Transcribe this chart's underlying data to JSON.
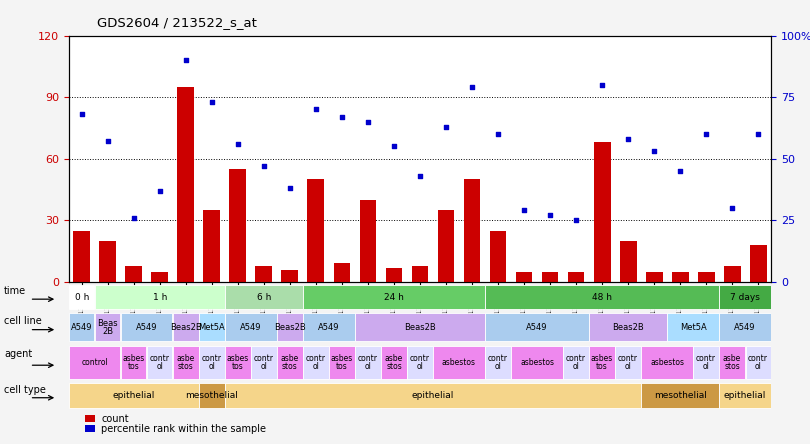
{
  "title": "GDS2604 / 213522_s_at",
  "samples": [
    "GSM139646",
    "GSM139660",
    "GSM139640",
    "GSM139647",
    "GSM139654",
    "GSM139661",
    "GSM139760",
    "GSM139669",
    "GSM139641",
    "GSM139648",
    "GSM139655",
    "GSM139663",
    "GSM139643",
    "GSM139653",
    "GSM139656",
    "GSM139657",
    "GSM139664",
    "GSM139644",
    "GSM139645",
    "GSM139652",
    "GSM139659",
    "GSM139666",
    "GSM139667",
    "GSM139668",
    "GSM139761",
    "GSM139642",
    "GSM139649"
  ],
  "counts": [
    25,
    20,
    8,
    5,
    95,
    35,
    55,
    8,
    6,
    50,
    9,
    40,
    7,
    8,
    35,
    50,
    25,
    5,
    5,
    5,
    68,
    20,
    5,
    5,
    5,
    8,
    18
  ],
  "percentiles": [
    68,
    57,
    26,
    37,
    90,
    73,
    56,
    47,
    38,
    70,
    67,
    65,
    55,
    43,
    63,
    79,
    60,
    29,
    27,
    25,
    80,
    58,
    53,
    45,
    60,
    30,
    60
  ],
  "ylim_left": [
    0,
    120
  ],
  "ylim_right": [
    0,
    100
  ],
  "yticks_left": [
    0,
    30,
    60,
    90,
    120
  ],
  "yticks_right": [
    0,
    25,
    50,
    75,
    100
  ],
  "bar_color": "#cc0000",
  "dot_color": "#0000cc",
  "bg_color": "#ffffff",
  "fig_bg": "#f4f4f4",
  "left_axis_color": "#cc0000",
  "right_axis_color": "#0000cc",
  "time_row": {
    "segments": [
      {
        "text": "0 h",
        "start": 0,
        "end": 1,
        "color": "#ffffff"
      },
      {
        "text": "1 h",
        "start": 1,
        "end": 6,
        "color": "#ccffcc"
      },
      {
        "text": "6 h",
        "start": 6,
        "end": 9,
        "color": "#aaddaa"
      },
      {
        "text": "24 h",
        "start": 9,
        "end": 16,
        "color": "#66cc66"
      },
      {
        "text": "48 h",
        "start": 16,
        "end": 25,
        "color": "#55bb55"
      },
      {
        "text": "7 days",
        "start": 25,
        "end": 27,
        "color": "#44aa44"
      }
    ]
  },
  "cellline_row": {
    "segments": [
      {
        "text": "A549",
        "start": 0,
        "end": 1,
        "color": "#aaccee"
      },
      {
        "text": "Beas\n2B",
        "start": 1,
        "end": 2,
        "color": "#ccaaee"
      },
      {
        "text": "A549",
        "start": 2,
        "end": 4,
        "color": "#aaccee"
      },
      {
        "text": "Beas2B",
        "start": 4,
        "end": 5,
        "color": "#ccaaee"
      },
      {
        "text": "Met5A",
        "start": 5,
        "end": 6,
        "color": "#aaddff"
      },
      {
        "text": "A549",
        "start": 6,
        "end": 8,
        "color": "#aaccee"
      },
      {
        "text": "Beas2B",
        "start": 8,
        "end": 9,
        "color": "#ccaaee"
      },
      {
        "text": "A549",
        "start": 9,
        "end": 11,
        "color": "#aaccee"
      },
      {
        "text": "Beas2B",
        "start": 11,
        "end": 16,
        "color": "#ccaaee"
      },
      {
        "text": "A549",
        "start": 16,
        "end": 20,
        "color": "#aaccee"
      },
      {
        "text": "Beas2B",
        "start": 20,
        "end": 23,
        "color": "#ccaaee"
      },
      {
        "text": "Met5A",
        "start": 23,
        "end": 25,
        "color": "#aaddff"
      },
      {
        "text": "A549",
        "start": 25,
        "end": 27,
        "color": "#aaccee"
      }
    ]
  },
  "agent_row": {
    "segments": [
      {
        "text": "control",
        "start": 0,
        "end": 2,
        "color": "#ee88ee"
      },
      {
        "text": "asbes\ntos",
        "start": 2,
        "end": 3,
        "color": "#ee88ee"
      },
      {
        "text": "contr\nol",
        "start": 3,
        "end": 4,
        "color": "#ddddff"
      },
      {
        "text": "asbe\nstos",
        "start": 4,
        "end": 5,
        "color": "#ee88ee"
      },
      {
        "text": "contr\nol",
        "start": 5,
        "end": 6,
        "color": "#ddddff"
      },
      {
        "text": "asbes\ntos",
        "start": 6,
        "end": 7,
        "color": "#ee88ee"
      },
      {
        "text": "contr\nol",
        "start": 7,
        "end": 8,
        "color": "#ddddff"
      },
      {
        "text": "asbe\nstos",
        "start": 8,
        "end": 9,
        "color": "#ee88ee"
      },
      {
        "text": "contr\nol",
        "start": 9,
        "end": 10,
        "color": "#ddddff"
      },
      {
        "text": "asbes\ntos",
        "start": 10,
        "end": 11,
        "color": "#ee88ee"
      },
      {
        "text": "contr\nol",
        "start": 11,
        "end": 12,
        "color": "#ddddff"
      },
      {
        "text": "asbe\nstos",
        "start": 12,
        "end": 13,
        "color": "#ee88ee"
      },
      {
        "text": "contr\nol",
        "start": 13,
        "end": 14,
        "color": "#ddddff"
      },
      {
        "text": "asbestos",
        "start": 14,
        "end": 16,
        "color": "#ee88ee"
      },
      {
        "text": "contr\nol",
        "start": 16,
        "end": 17,
        "color": "#ddddff"
      },
      {
        "text": "asbestos",
        "start": 17,
        "end": 19,
        "color": "#ee88ee"
      },
      {
        "text": "contr\nol",
        "start": 19,
        "end": 20,
        "color": "#ddddff"
      },
      {
        "text": "asbes\ntos",
        "start": 20,
        "end": 21,
        "color": "#ee88ee"
      },
      {
        "text": "contr\nol",
        "start": 21,
        "end": 22,
        "color": "#ddddff"
      },
      {
        "text": "asbestos",
        "start": 22,
        "end": 24,
        "color": "#ee88ee"
      },
      {
        "text": "contr\nol",
        "start": 24,
        "end": 25,
        "color": "#ddddff"
      },
      {
        "text": "asbe\nstos",
        "start": 25,
        "end": 26,
        "color": "#ee88ee"
      },
      {
        "text": "contr\nol",
        "start": 26,
        "end": 27,
        "color": "#ddddff"
      }
    ]
  },
  "celltype_row": {
    "segments": [
      {
        "text": "epithelial",
        "start": 0,
        "end": 5,
        "color": "#f5d58a"
      },
      {
        "text": "mesothelial",
        "start": 5,
        "end": 6,
        "color": "#cc9944"
      },
      {
        "text": "epithelial",
        "start": 6,
        "end": 22,
        "color": "#f5d58a"
      },
      {
        "text": "mesothelial",
        "start": 22,
        "end": 25,
        "color": "#cc9944"
      },
      {
        "text": "epithelial",
        "start": 25,
        "end": 27,
        "color": "#f5d58a"
      }
    ]
  }
}
